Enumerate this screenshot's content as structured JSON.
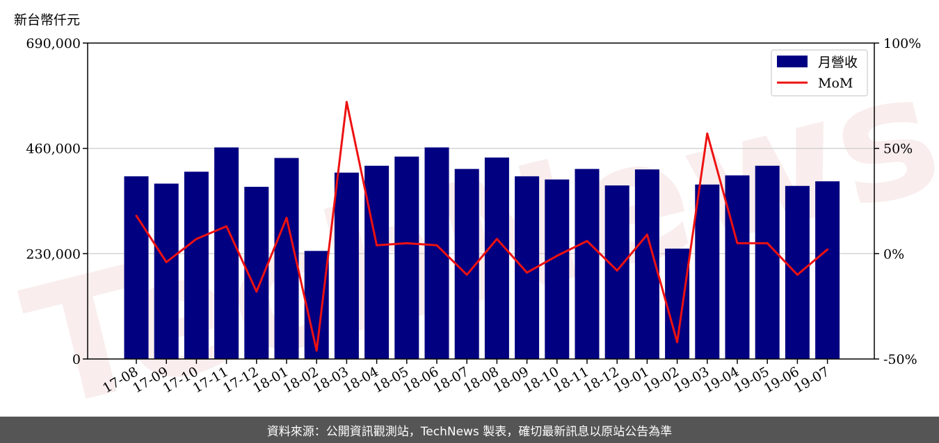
{
  "unit_label": "新台幣仟元",
  "watermark_text": "TechNews",
  "footer_text": "資料來源：公開資訊觀測站，TechNews 製表，確切最新訊息以原站公告為準",
  "colors": {
    "bar": "#000080",
    "line": "#ee1111",
    "grid": "#d0d0d0",
    "footer_bg": "#555555",
    "watermark": "#e8b0b0"
  },
  "chart_data": {
    "type": "bar",
    "title": "",
    "xlabel": "",
    "ylabel": "新台幣仟元",
    "categories": [
      "17-08",
      "17-09",
      "17-10",
      "17-11",
      "17-12",
      "18-01",
      "18-02",
      "18-03",
      "18-04",
      "18-05",
      "18-06",
      "18-07",
      "18-08",
      "18-09",
      "18-10",
      "18-11",
      "18-12",
      "19-01",
      "19-02",
      "19-03",
      "19-04",
      "19-05",
      "19-06",
      "19-07"
    ],
    "ylim": [
      0,
      690000
    ],
    "yticks": [
      0,
      230000,
      460000,
      690000
    ],
    "ytick_labels": [
      "0",
      "230,000",
      "460,000",
      "690,000"
    ],
    "y2lim": [
      -50,
      100
    ],
    "y2ticks": [
      -50,
      0,
      50,
      100
    ],
    "y2tick_labels": [
      "-50%",
      "0%",
      "50%",
      "100%"
    ],
    "grid": true,
    "legend_position": "top-right",
    "series": [
      {
        "name": "月營收",
        "type": "bar",
        "axis": "left",
        "values": [
          399000,
          383000,
          409000,
          462000,
          376000,
          439000,
          236000,
          407000,
          422000,
          442000,
          462000,
          415000,
          440000,
          399000,
          392000,
          415000,
          379000,
          414000,
          241000,
          381000,
          401000,
          422000,
          378000,
          388000
        ]
      },
      {
        "name": "MoM",
        "type": "line",
        "axis": "right",
        "values": [
          18,
          -4,
          7,
          13,
          -18,
          17,
          -46,
          72,
          4,
          5,
          4,
          -10,
          7,
          -9,
          -1,
          6,
          -8,
          9,
          -42,
          57,
          5,
          5,
          -10,
          2
        ]
      }
    ]
  }
}
